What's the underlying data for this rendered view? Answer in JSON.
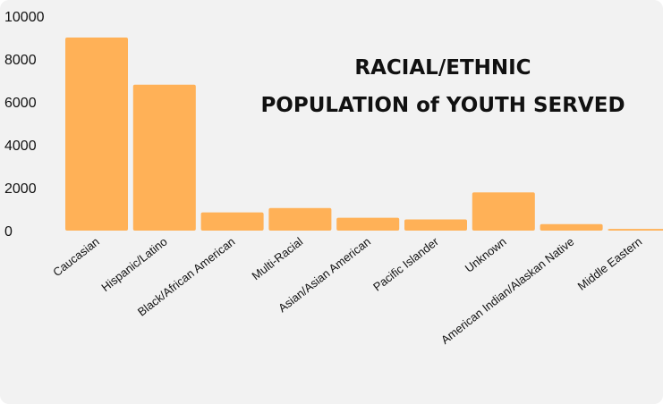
{
  "chart_data": {
    "type": "bar",
    "title": [
      "RACIAL/ETHNIC",
      "POPULATION of YOUTH SERVED"
    ],
    "categories": [
      "Caucasian",
      "Hispanic/Latino",
      "Black/African American",
      "Multi-Racial",
      "Asian/Asian American",
      "Pacific Islander",
      "Unknown",
      "American Indian/Alaskan Native",
      "Middle Eastern"
    ],
    "values": [
      9000,
      6800,
      850,
      1050,
      600,
      520,
      1780,
      300,
      80
    ],
    "ylim": [
      0,
      10000
    ],
    "yticks": [
      "0",
      "2000",
      "4000",
      "6000",
      "8000",
      "10000"
    ],
    "ytick_values": [
      0,
      2000,
      4000,
      6000,
      8000,
      10000
    ],
    "grid": false,
    "bar_color": "#FFB157",
    "background": "#F2F2F2"
  }
}
